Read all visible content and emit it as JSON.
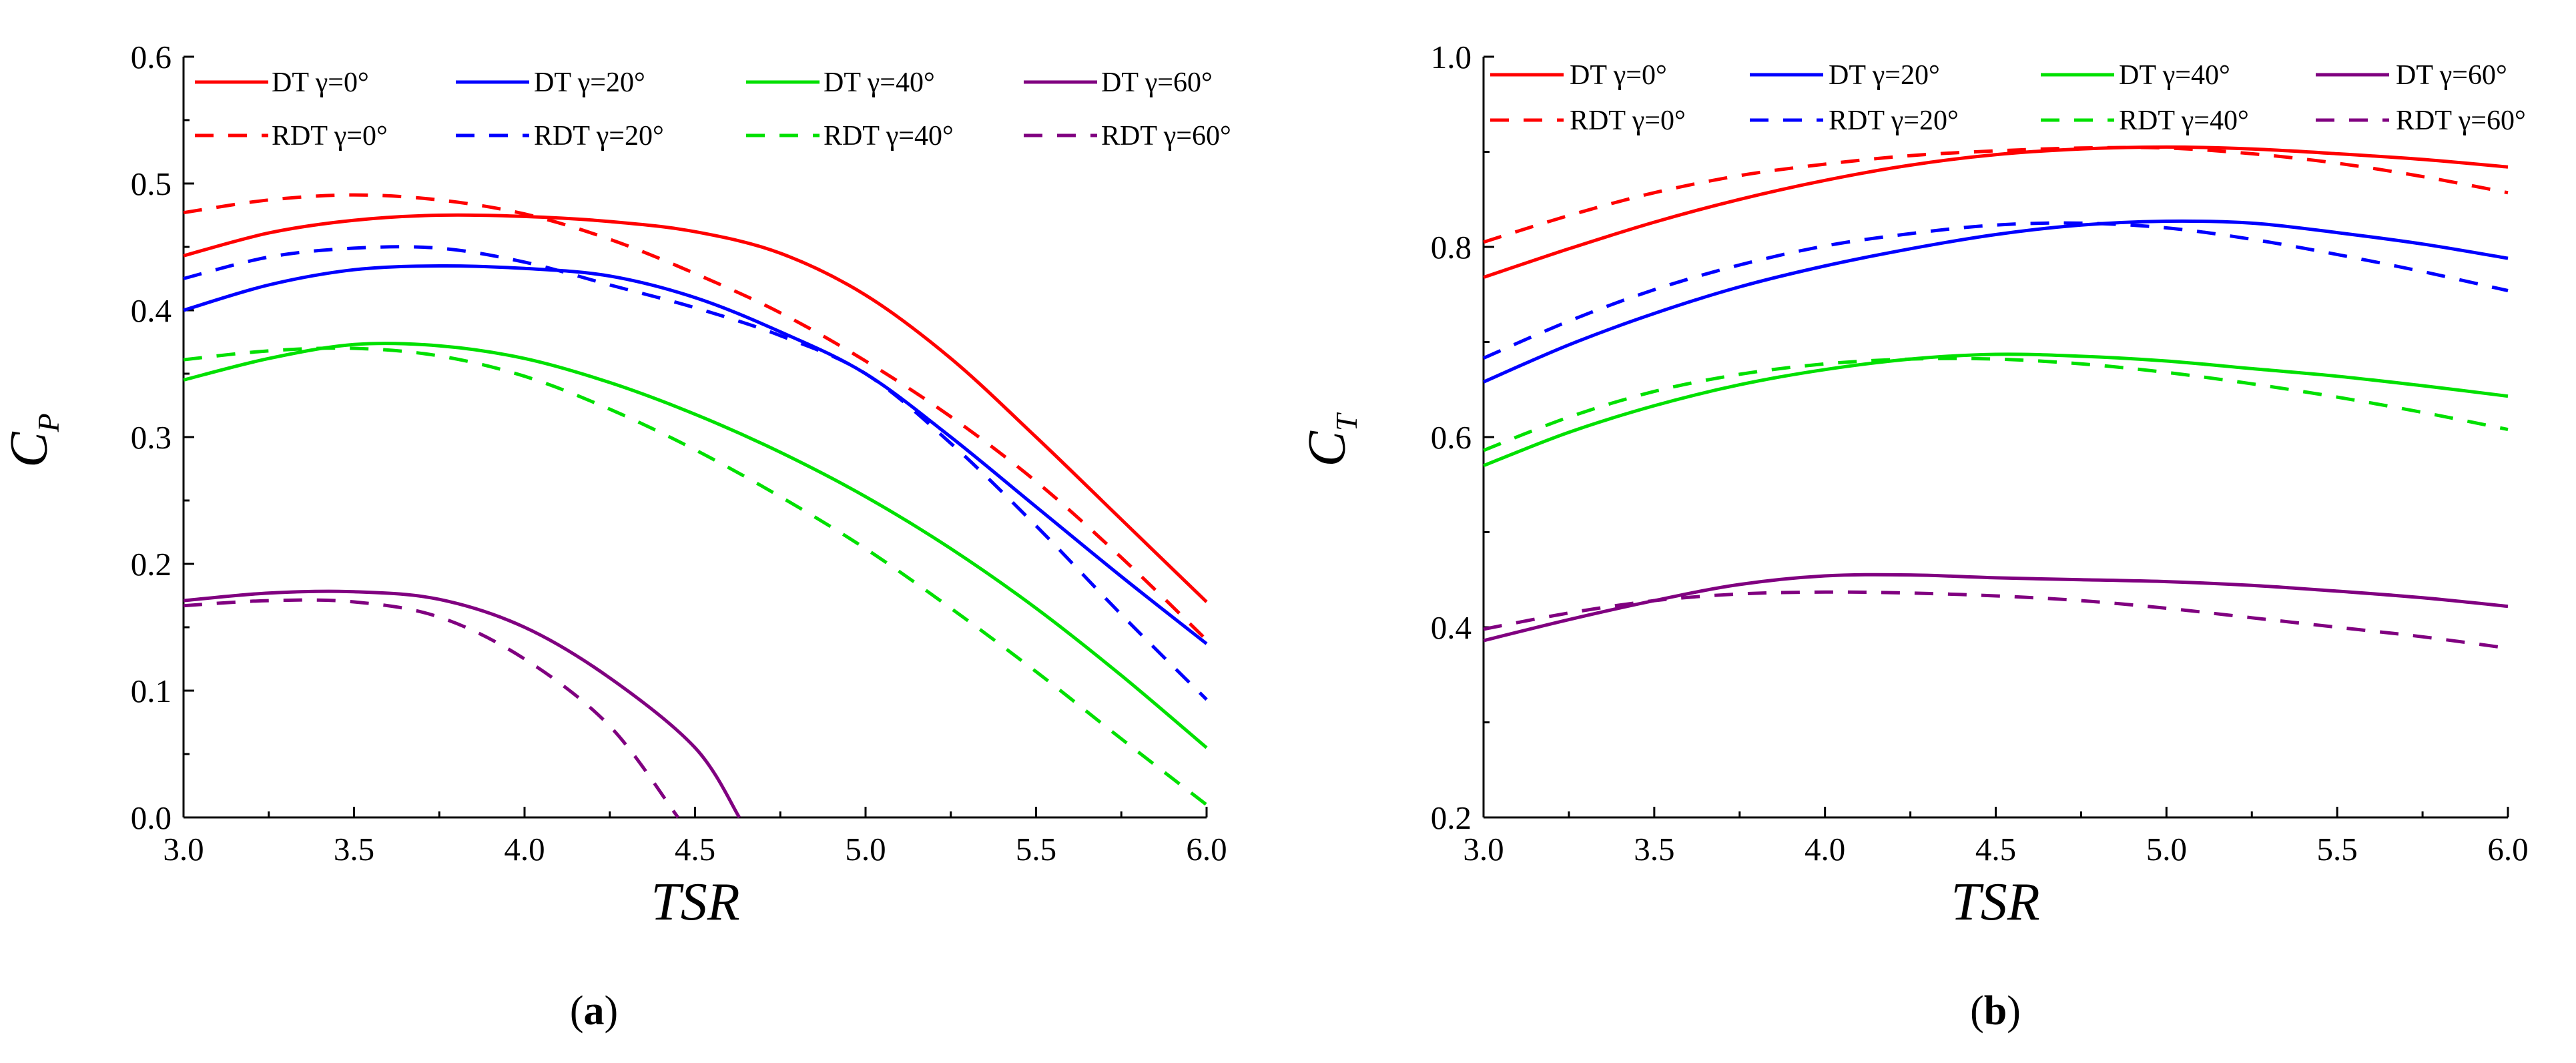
{
  "chart_data": [
    {
      "type": "line",
      "panel": "a",
      "xlabel": "TSR",
      "ylabel": "C",
      "ylabel_sub": "P",
      "xlim": [
        3.0,
        6.0
      ],
      "ylim": [
        0.0,
        0.6
      ],
      "xticks": [
        "3.0",
        "3.5",
        "4.0",
        "4.5",
        "5.0",
        "5.5",
        "6.0"
      ],
      "yticks": [
        "0.0",
        "0.1",
        "0.2",
        "0.3",
        "0.4",
        "0.5",
        "0.6"
      ],
      "series": [
        {
          "name": "DT γ=0°",
          "color": "#ff0000",
          "dash": false,
          "x": [
            3.0,
            3.25,
            3.5,
            3.75,
            4.0,
            4.25,
            4.5,
            4.75,
            5.0,
            5.25,
            5.5,
            5.75,
            6.0
          ],
          "y": [
            0.443,
            0.461,
            0.471,
            0.475,
            0.474,
            0.47,
            0.462,
            0.445,
            0.412,
            0.362,
            0.3,
            0.235,
            0.17
          ]
        },
        {
          "name": "RDT γ=0°",
          "color": "#ff0000",
          "dash": true,
          "x": [
            3.0,
            3.25,
            3.5,
            3.75,
            4.0,
            4.25,
            4.5,
            4.75,
            5.0,
            5.25,
            5.5,
            5.75,
            6.0
          ],
          "y": [
            0.477,
            0.487,
            0.491,
            0.487,
            0.476,
            0.456,
            0.429,
            0.398,
            0.36,
            0.316,
            0.265,
            0.205,
            0.14
          ]
        },
        {
          "name": "DT   γ=20°",
          "color": "#0000ff",
          "dash": false,
          "x": [
            3.0,
            3.25,
            3.5,
            3.75,
            4.0,
            4.25,
            4.5,
            4.75,
            5.0,
            5.25,
            5.5,
            5.75,
            6.0
          ],
          "y": [
            0.4,
            0.42,
            0.432,
            0.435,
            0.433,
            0.427,
            0.41,
            0.383,
            0.35,
            0.3,
            0.245,
            0.19,
            0.137
          ]
        },
        {
          "name": "RDT γ=20°",
          "color": "#0000ff",
          "dash": true,
          "x": [
            3.0,
            3.25,
            3.5,
            3.75,
            4.0,
            4.25,
            4.5,
            4.75,
            5.0,
            5.25,
            5.5,
            5.75,
            6.0
          ],
          "y": [
            0.425,
            0.442,
            0.449,
            0.449,
            0.438,
            0.42,
            0.402,
            0.38,
            0.35,
            0.295,
            0.23,
            0.16,
            0.093
          ]
        },
        {
          "name": "DT γ=40°",
          "color": "#00e000",
          "dash": false,
          "x": [
            3.0,
            3.25,
            3.5,
            3.75,
            4.0,
            4.25,
            4.5,
            4.75,
            5.0,
            5.25,
            5.5,
            5.75,
            6.0
          ],
          "y": [
            0.345,
            0.362,
            0.373,
            0.372,
            0.362,
            0.343,
            0.318,
            0.288,
            0.253,
            0.212,
            0.165,
            0.112,
            0.055
          ]
        },
        {
          "name": "RDT γ=40°",
          "color": "#00e000",
          "dash": true,
          "x": [
            3.0,
            3.25,
            3.5,
            3.75,
            4.0,
            4.25,
            4.5,
            4.75,
            5.0,
            5.25,
            5.5,
            5.75,
            6.0
          ],
          "y": [
            0.361,
            0.368,
            0.37,
            0.364,
            0.348,
            0.322,
            0.29,
            0.253,
            0.212,
            0.165,
            0.115,
            0.062,
            0.01
          ]
        },
        {
          "name": "DT γ=60°",
          "color": "#800080",
          "dash": false,
          "x": [
            3.0,
            3.25,
            3.5,
            3.75,
            4.0,
            4.25,
            4.5,
            4.63
          ],
          "y": [
            0.171,
            0.177,
            0.178,
            0.172,
            0.15,
            0.11,
            0.055,
            0.0
          ]
        },
        {
          "name": "RDT γ=60°",
          "color": "#800080",
          "dash": true,
          "x": [
            3.0,
            3.25,
            3.5,
            3.75,
            4.0,
            4.25,
            4.45
          ],
          "y": [
            0.167,
            0.171,
            0.17,
            0.158,
            0.125,
            0.072,
            0.0
          ]
        }
      ],
      "legend": [
        [
          "DT γ=0°",
          "DT   γ=20°",
          "DT γ=40°",
          "DT γ=60°"
        ],
        [
          "RDT γ=0°",
          "RDT γ=20°",
          "RDT γ=40°",
          "RDT γ=60°"
        ]
      ],
      "legend_position": "top"
    },
    {
      "type": "line",
      "panel": "b",
      "xlabel": "TSR",
      "ylabel": "C",
      "ylabel_sub": "T",
      "xlim": [
        3.0,
        6.0
      ],
      "ylim": [
        0.2,
        1.0
      ],
      "xticks": [
        "3.0",
        "3.5",
        "4.0",
        "4.5",
        "5.0",
        "5.5",
        "6.0"
      ],
      "yticks": [
        "0.2",
        "0.4",
        "0.6",
        "0.8",
        "1.0"
      ],
      "series": [
        {
          "name": "DT γ=0°",
          "color": "#ff0000",
          "dash": false,
          "x": [
            3.0,
            3.25,
            3.5,
            3.75,
            4.0,
            4.25,
            4.5,
            4.75,
            5.0,
            5.25,
            5.5,
            5.75,
            6.0
          ],
          "y": [
            0.768,
            0.798,
            0.826,
            0.85,
            0.87,
            0.886,
            0.897,
            0.903,
            0.905,
            0.903,
            0.898,
            0.892,
            0.884
          ]
        },
        {
          "name": "RDT γ=0°",
          "color": "#ff0000",
          "dash": true,
          "x": [
            3.0,
            3.25,
            3.5,
            3.75,
            4.0,
            4.25,
            4.5,
            4.75,
            5.0,
            5.25,
            5.5,
            5.75,
            6.0
          ],
          "y": [
            0.805,
            0.833,
            0.857,
            0.875,
            0.887,
            0.896,
            0.901,
            0.904,
            0.904,
            0.898,
            0.888,
            0.874,
            0.857
          ]
        },
        {
          "name": "DT   γ=20°",
          "color": "#0000ff",
          "dash": false,
          "x": [
            3.0,
            3.25,
            3.5,
            3.75,
            4.0,
            4.25,
            4.5,
            4.75,
            5.0,
            5.25,
            5.5,
            5.75,
            6.0
          ],
          "y": [
            0.658,
            0.697,
            0.73,
            0.758,
            0.78,
            0.798,
            0.813,
            0.823,
            0.827,
            0.825,
            0.815,
            0.803,
            0.788
          ]
        },
        {
          "name": "RDT γ=20°",
          "color": "#0000ff",
          "dash": true,
          "x": [
            3.0,
            3.25,
            3.5,
            3.75,
            4.0,
            4.25,
            4.5,
            4.75,
            5.0,
            5.25,
            5.5,
            5.75,
            6.0
          ],
          "y": [
            0.683,
            0.722,
            0.755,
            0.781,
            0.801,
            0.814,
            0.823,
            0.825,
            0.82,
            0.808,
            0.792,
            0.774,
            0.754
          ]
        },
        {
          "name": "DT γ=40°",
          "color": "#00e000",
          "dash": false,
          "x": [
            3.0,
            3.25,
            3.5,
            3.75,
            4.0,
            4.25,
            4.5,
            4.75,
            5.0,
            5.25,
            5.5,
            5.75,
            6.0
          ],
          "y": [
            0.57,
            0.605,
            0.633,
            0.655,
            0.671,
            0.682,
            0.687,
            0.685,
            0.68,
            0.672,
            0.664,
            0.654,
            0.643
          ]
        },
        {
          "name": "RDT γ=40°",
          "color": "#00e000",
          "dash": true,
          "x": [
            3.0,
            3.25,
            3.5,
            3.75,
            4.0,
            4.25,
            4.5,
            4.75,
            5.0,
            5.25,
            5.5,
            5.75,
            6.0
          ],
          "y": [
            0.586,
            0.621,
            0.648,
            0.666,
            0.677,
            0.682,
            0.682,
            0.677,
            0.668,
            0.656,
            0.642,
            0.626,
            0.608
          ]
        },
        {
          "name": "DT γ=60°",
          "color": "#800080",
          "dash": false,
          "x": [
            3.0,
            3.25,
            3.5,
            3.75,
            4.0,
            4.25,
            4.5,
            4.75,
            5.0,
            5.25,
            5.5,
            5.75,
            6.0
          ],
          "y": [
            0.386,
            0.408,
            0.428,
            0.445,
            0.454,
            0.455,
            0.452,
            0.45,
            0.448,
            0.444,
            0.438,
            0.431,
            0.422
          ]
        },
        {
          "name": "RDT γ=60°",
          "color": "#800080",
          "dash": true,
          "x": [
            3.0,
            3.25,
            3.5,
            3.75,
            4.0,
            4.25,
            4.5,
            4.75,
            5.0,
            5.25,
            5.5,
            5.75,
            6.0
          ],
          "y": [
            0.398,
            0.415,
            0.428,
            0.435,
            0.437,
            0.436,
            0.433,
            0.428,
            0.42,
            0.41,
            0.4,
            0.39,
            0.378
          ]
        }
      ],
      "legend": [
        [
          "DT γ=0°",
          "DT   γ=20°",
          "DT γ=40°",
          "DT γ=60°"
        ],
        [
          "RDT γ=0°",
          "RDT γ=20°",
          "RDT γ=40°",
          "RDT γ=60°"
        ]
      ],
      "legend_position": "top"
    }
  ],
  "captions": {
    "a_open": "(",
    "a_letter": "a",
    "a_close": ")",
    "b_open": "(",
    "b_letter": "b",
    "b_close": ")"
  }
}
